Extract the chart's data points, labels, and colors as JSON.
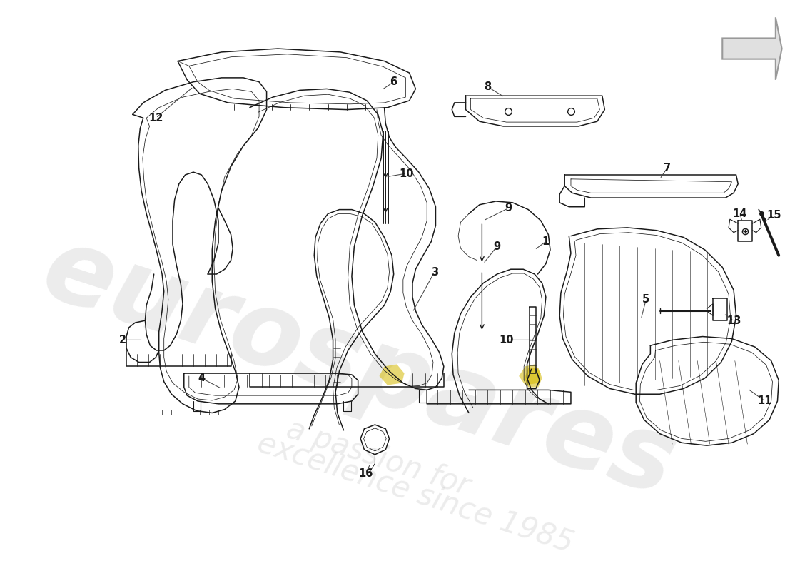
{
  "background_color": "#ffffff",
  "line_color": "#1a1a1a",
  "label_color": "#1a1a1a",
  "watermark_text1": "eurospares",
  "watermark_text2": "a passion for\nexcellence since 1985",
  "watermark_color": "#bbbbbb",
  "watermark_alpha": 0.28,
  "highlight_color": "#d4b800",
  "highlight_alpha": 0.55,
  "arrow_fill": "#e0e0e0",
  "arrow_edge": "#999999",
  "label_fs": 10.5
}
